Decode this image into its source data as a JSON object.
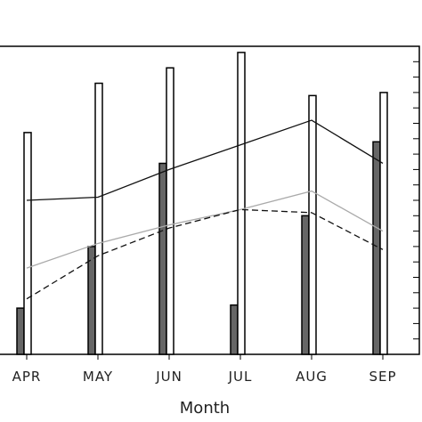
{
  "chart_data": {
    "type": "bar",
    "xlabel": "Month",
    "categories": [
      "APR",
      "MAY",
      "JUN",
      "JUL",
      "AUG",
      "SEP"
    ],
    "ylim": [
      0,
      100
    ],
    "grid": false,
    "legend": "none",
    "series": [
      {
        "kind": "bar",
        "style": "filled",
        "color": "#666666",
        "values": [
          15,
          35,
          62,
          16,
          45,
          69
        ]
      },
      {
        "kind": "bar",
        "style": "outline",
        "color": "#ffffff",
        "values": [
          72,
          88,
          93,
          98,
          84,
          85
        ]
      },
      {
        "kind": "line",
        "dash": "solid",
        "color": "#111111",
        "values": [
          50,
          51,
          60,
          68,
          76,
          62
        ]
      },
      {
        "kind": "line",
        "dash": "solid",
        "color": "#aaaaaa",
        "values": [
          28,
          36,
          42,
          47,
          53,
          40
        ]
      },
      {
        "kind": "line",
        "dash": "dashed",
        "color": "#111111",
        "values": [
          18,
          32,
          41,
          47,
          46,
          34
        ]
      }
    ]
  }
}
